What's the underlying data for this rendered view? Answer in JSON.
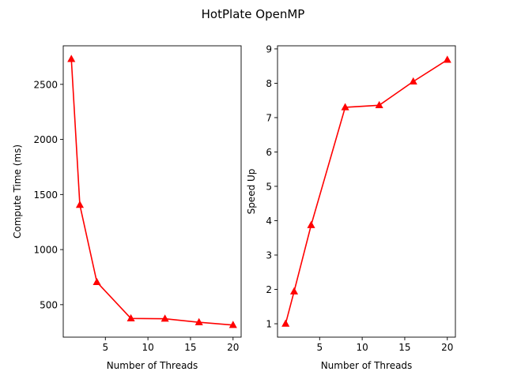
{
  "title": "HotPlate OpenMP",
  "colors": {
    "series": "#ff0000",
    "axes": "#000000",
    "background": "#ffffff"
  },
  "chart_data": [
    {
      "type": "line",
      "marker": "triangle",
      "xlabel": "Number of Threads",
      "ylabel": "Compute Time (ms)",
      "xlim": [
        0.05,
        20.95
      ],
      "ylim": [
        205,
        2850
      ],
      "xticks": [
        5,
        10,
        15,
        20
      ],
      "yticks": [
        500,
        1000,
        1500,
        2000,
        2500
      ],
      "grid": false,
      "series": [
        {
          "x": [
            1,
            2,
            4,
            8,
            12,
            16,
            20
          ],
          "y": [
            2730,
            1405,
            705,
            375,
            372,
            340,
            315
          ]
        }
      ]
    },
    {
      "type": "line",
      "marker": "triangle",
      "xlabel": "Number of Threads",
      "ylabel": "Speed Up",
      "xlim": [
        0.05,
        20.95
      ],
      "ylim": [
        0.61,
        9.09
      ],
      "xticks": [
        5,
        10,
        15,
        20
      ],
      "yticks": [
        1,
        2,
        3,
        4,
        5,
        6,
        7,
        8,
        9
      ],
      "grid": false,
      "series": [
        {
          "x": [
            1,
            2,
            4,
            8,
            12,
            16,
            20
          ],
          "y": [
            1.0,
            1.94,
            3.87,
            7.3,
            7.36,
            8.05,
            8.68
          ]
        }
      ]
    }
  ]
}
